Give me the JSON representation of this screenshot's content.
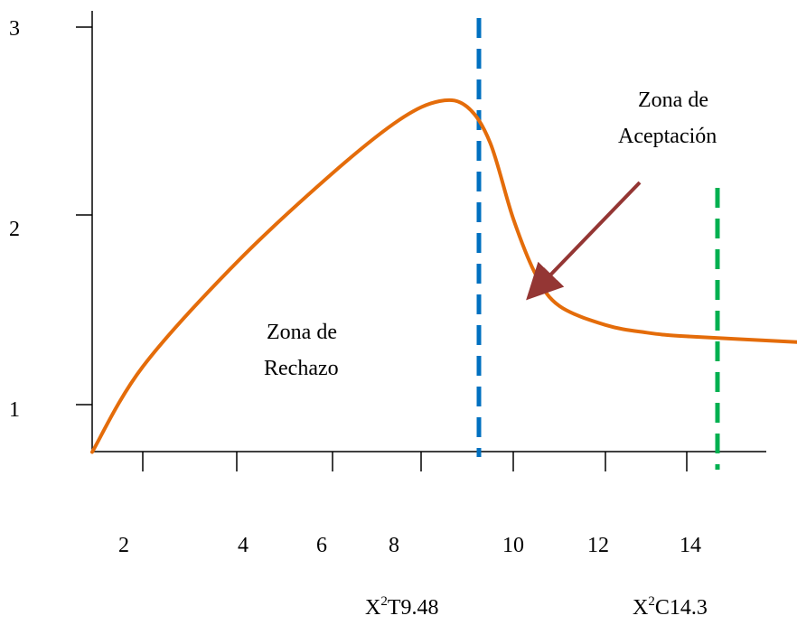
{
  "chart_data": {
    "type": "line",
    "title": "",
    "xlabel": "",
    "ylabel": "",
    "x_tick_labels": [
      "2",
      "4",
      "6",
      "8",
      "10",
      "12",
      "14"
    ],
    "y_tick_labels": [
      "1",
      "2",
      "3"
    ],
    "xlim": [
      0.5,
      15.5
    ],
    "ylim": [
      0.75,
      3
    ],
    "curve": {
      "color": "#e46c0a",
      "x": [
        0.5,
        2,
        4,
        6,
        7.5,
        8.4,
        9.0,
        9.5,
        10.0,
        10.5,
        11.0,
        12.0,
        13.0,
        14.0,
        15.5
      ],
      "y": [
        0.75,
        1.2,
        1.75,
        2.22,
        2.5,
        2.6,
        2.57,
        2.38,
        1.98,
        1.68,
        1.52,
        1.42,
        1.38,
        1.36,
        1.33
      ]
    },
    "thresholds": [
      {
        "name": "X²T",
        "x": 9.48,
        "color": "#0070c0",
        "label_base": "X",
        "label_sup": "2",
        "label_rest": "T9.48"
      },
      {
        "name": "X²C",
        "x": 14.3,
        "color": "#00b050",
        "label_base": "X",
        "label_sup": "2",
        "label_rest": "C14.3"
      }
    ],
    "annotations": {
      "acceptance": {
        "line1": "Zona de",
        "line2": "Aceptación"
      },
      "rejection": {
        "line1": "Zona de",
        "line2": "Rechazo"
      },
      "arrow_color": "#943634"
    }
  }
}
